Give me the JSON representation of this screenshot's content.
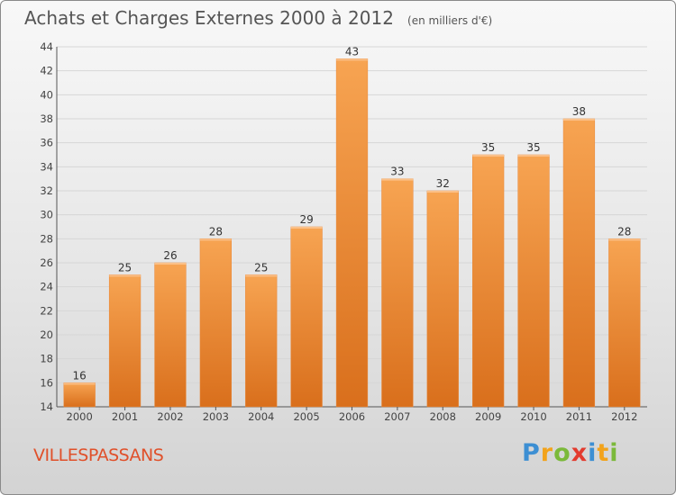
{
  "chart_data": {
    "type": "bar",
    "title": "Achats et Charges Externes 2000 à 2012",
    "subtitle": "(en milliers d'€)",
    "xlabel": "",
    "ylabel": "",
    "categories": [
      "2000",
      "2001",
      "2002",
      "2003",
      "2004",
      "2005",
      "2006",
      "2007",
      "2008",
      "2009",
      "2010",
      "2011",
      "2012"
    ],
    "values": [
      16,
      25,
      26,
      28,
      25,
      29,
      43,
      33,
      32,
      35,
      35,
      38,
      28
    ],
    "ylim": [
      14,
      44
    ],
    "yticks": [
      14,
      16,
      18,
      20,
      22,
      24,
      26,
      28,
      30,
      32,
      34,
      36,
      38,
      40,
      42,
      44
    ],
    "grid": true,
    "bar_color": "#f39b3f",
    "bar_color_dark": "#d96f1c"
  },
  "place_name": "VILLESPASSANS",
  "logo": {
    "letters": [
      "P",
      "r",
      "o",
      "x",
      "i",
      "t",
      "i"
    ],
    "colors": [
      "#3d8fd3",
      "#f2a31b",
      "#7bb93a",
      "#e33b2e",
      "#3d8fd3",
      "#f2a31b",
      "#7bb93a"
    ]
  }
}
